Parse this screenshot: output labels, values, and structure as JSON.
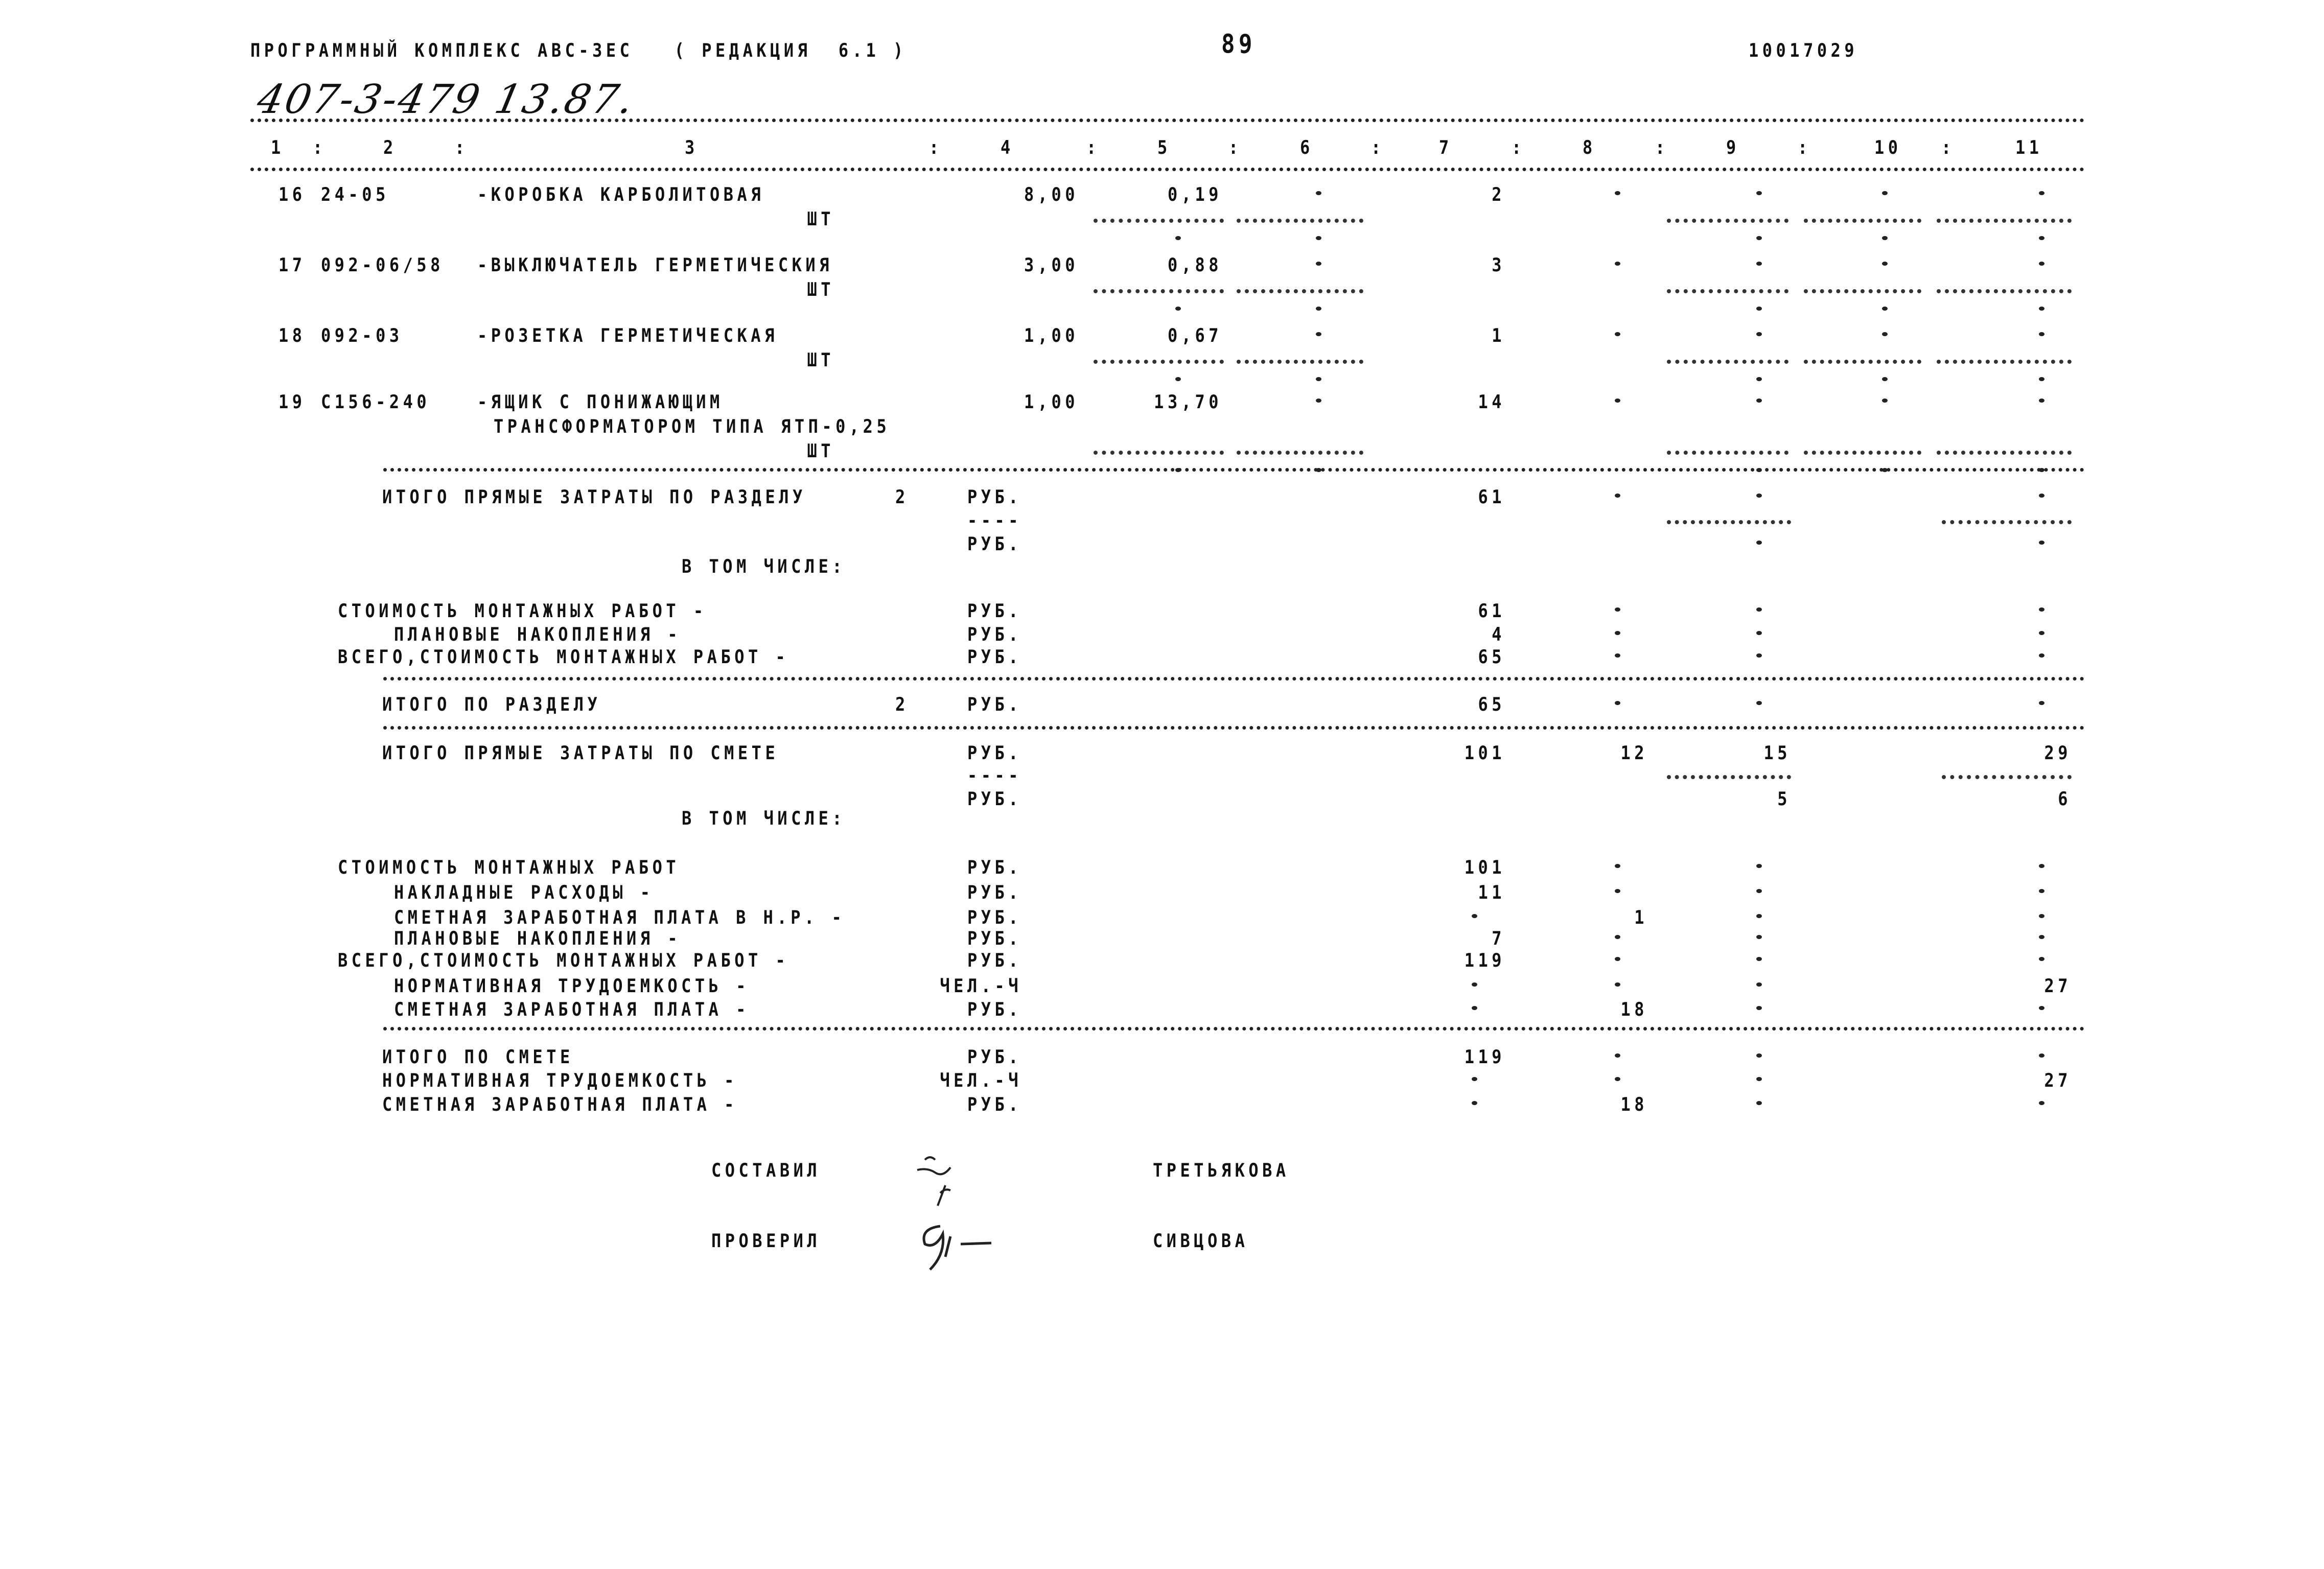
{
  "header": {
    "program": "ПРОГРАММНЫЙ КОМПЛЕКС АВС-3ЕС   ( РЕДАКЦИЯ  6.1 )",
    "page_number": "89",
    "doc_code": "10017029",
    "handwritten_ref": "407-3-479 13.87."
  },
  "columns": {
    "labels": [
      "1",
      "2",
      "3",
      "4",
      "5",
      "6",
      "7",
      "8",
      "9",
      "10",
      "11"
    ],
    "separator": ":"
  },
  "items": [
    {
      "no": "16",
      "code": "24-05",
      "name": [
        "-КОРОБКА КАРБОЛИТОВАЯ"
      ],
      "unit": "ШТ",
      "qty": "8,00",
      "price": "0,19",
      "c6": "-",
      "c7": "2",
      "c8": "-",
      "c9": "-",
      "c10": "-",
      "c11": "-"
    },
    {
      "no": "17",
      "code": "092-06/58",
      "name": [
        "-ВЫКЛЮЧАТЕЛЬ ГЕРМЕТИЧЕСКИЯ"
      ],
      "unit": "ШТ",
      "qty": "3,00",
      "price": "0,88",
      "c6": "-",
      "c7": "3",
      "c8": "-",
      "c9": "-",
      "c10": "-",
      "c11": "-"
    },
    {
      "no": "18",
      "code": "092-03",
      "name": [
        "-РОЗЕТКА ГЕРМЕТИЧЕСКАЯ"
      ],
      "unit": "ШТ",
      "qty": "1,00",
      "price": "0,67",
      "c6": "-",
      "c7": "1",
      "c8": "-",
      "c9": "-",
      "c10": "-",
      "c11": "-"
    },
    {
      "no": "19",
      "code": "С156-240",
      "name": [
        "-ЯЩИК С ПОНИЖАЮЩИМ",
        "ТРАНСФОРМАТОРОМ ТИПА ЯТП-0,25"
      ],
      "unit": "ШТ",
      "qty": "1,00",
      "price": "13,70",
      "c6": "-",
      "c7": "14",
      "c8": "-",
      "c9": "-",
      "c10": "-",
      "c11": "-"
    }
  ],
  "summary": [
    {
      "label": "ИТОГО ПРЯМЫЕ ЗАТРАТЫ ПО РАЗДЕЛУ",
      "extra": "2",
      "unit": "РУБ.",
      "c7": "61",
      "c8": "-",
      "c9": "-",
      "c11": "-"
    },
    {
      "unit": "----"
    },
    {
      "unit": "РУБ.",
      "c9": "-",
      "c11": "-"
    },
    {
      "label": "В ТОМ ЧИСЛЕ:"
    },
    {
      "label": "СТОИМОСТЬ МОНТАЖНЫХ РАБОТ -",
      "unit": "РУБ.",
      "c7": "61",
      "c8": "-",
      "c9": "-",
      "c11": "-"
    },
    {
      "label": "ПЛАНОВЫЕ НАКОПЛЕНИЯ -",
      "unit": "РУБ.",
      "c7": "4",
      "c8": "-",
      "c9": "-",
      "c11": "-"
    },
    {
      "label": "ВСЕГО,СТОИМОСТЬ МОНТАЖНЫХ РАБОТ -",
      "unit": "РУБ.",
      "c7": "65",
      "c8": "-",
      "c9": "-",
      "c11": "-"
    },
    {
      "label": "ИТОГО ПО РАЗДЕЛУ",
      "extra": "2",
      "unit": "РУБ.",
      "c7": "65",
      "c8": "-",
      "c9": "-",
      "c11": "-"
    },
    {
      "label": "ИТОГО ПРЯМЫЕ ЗАТРАТЫ ПО СМЕТЕ",
      "unit": "РУБ.",
      "c7": "101",
      "c8": "12",
      "c9": "15",
      "c11": "29"
    },
    {
      "unit": "----"
    },
    {
      "unit": "РУБ.",
      "c9": "5",
      "c11": "6"
    },
    {
      "label": "В ТОМ ЧИСЛЕ:"
    },
    {
      "label": "СТОИМОСТЬ МОНТАЖНЫХ РАБОТ",
      "unit": "РУБ.",
      "c7": "101",
      "c8": "-",
      "c9": "-",
      "c11": "-"
    },
    {
      "label": "НАКЛАДНЫЕ РАСХОДЫ -",
      "unit": "РУБ.",
      "c7": "11",
      "c8": "-",
      "c9": "-",
      "c11": "-"
    },
    {
      "label": "СМЕТНАЯ ЗАРАБОТНАЯ ПЛАТА В Н.Р. -",
      "unit": "РУБ.",
      "c7": "-",
      "c8": "1",
      "c9": "-",
      "c11": "-"
    },
    {
      "label": "ПЛАНОВЫЕ НАКОПЛЕНИЯ -",
      "unit": "РУБ.",
      "c7": "7",
      "c8": "-",
      "c9": "-",
      "c11": "-"
    },
    {
      "label": "ВСЕГО,СТОИМОСТЬ МОНТАЖНЫХ РАБОТ -",
      "unit": "РУБ.",
      "c7": "119",
      "c8": "-",
      "c9": "-",
      "c11": "-"
    },
    {
      "label": "НОРМАТИВНАЯ ТРУДОЕМКОСТЬ -",
      "unit": "ЧЕЛ.-Ч",
      "c7": "-",
      "c8": "-",
      "c9": "-",
      "c11": "27"
    },
    {
      "label": "СМЕТНАЯ ЗАРАБОТНАЯ ПЛАТА -",
      "unit": "РУБ.",
      "c7": "-",
      "c8": "18",
      "c9": "-",
      "c11": "-"
    },
    {
      "label": "ИТОГО ПО СМЕТЕ",
      "unit": "РУБ.",
      "c7": "119",
      "c8": "-",
      "c9": "-",
      "c11": "-"
    },
    {
      "label": "НОРМАТИВНАЯ ТРУДОЕМКОСТЬ -",
      "unit": "ЧЕЛ.-Ч",
      "c7": "-",
      "c8": "-",
      "c9": "-",
      "c11": "27"
    },
    {
      "label": "СМЕТНАЯ ЗАРАБОТНАЯ ПЛАТА -",
      "unit": "РУБ.",
      "c7": "-",
      "c8": "18",
      "c9": "-",
      "c11": "-"
    }
  ],
  "signatures": {
    "compiled_label": "СОСТАВИЛ",
    "compiled_name": "ТРЕТЬЯКОВА",
    "checked_label": "ПРОВЕРИЛ",
    "checked_name": "СИВЦОВА"
  }
}
